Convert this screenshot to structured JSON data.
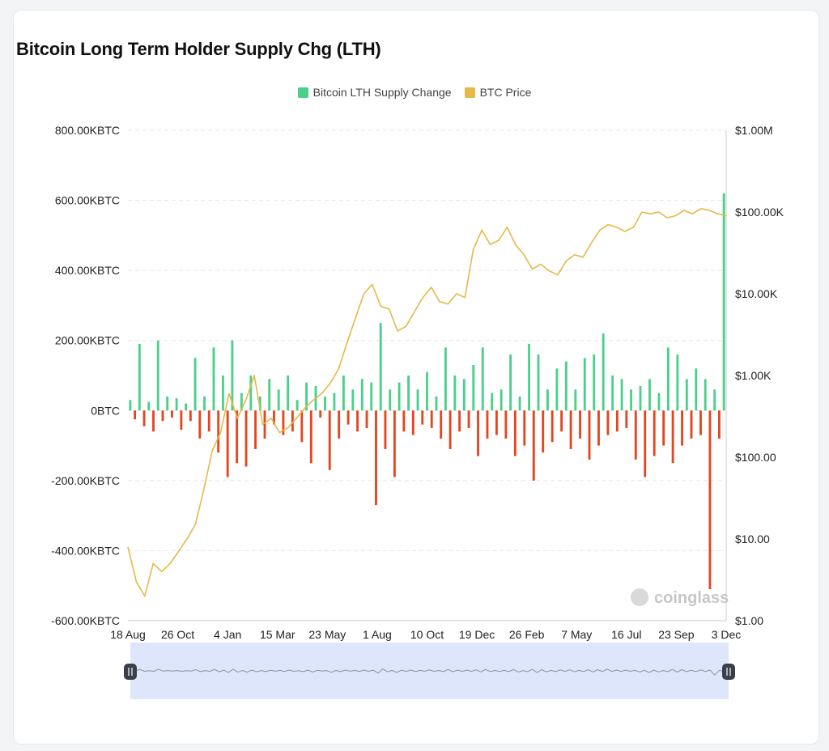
{
  "title": "Bitcoin Long Term Holder Supply Chg (LTH)",
  "watermark": "coinglass",
  "colors": {
    "positive": "#4bd08b",
    "negative": "#e4461f",
    "price": "#e6b84a",
    "grid": "#e6e6e6",
    "navigator_fill": "#dde6fb",
    "navigator_handle": "#3b3f4a"
  },
  "chart_data": {
    "type": "bar",
    "title": "Bitcoin Long Term Holder Supply Chg (LTH)",
    "legend": [
      {
        "name": "Bitcoin LTH Supply Change",
        "color": "#4bd08b"
      },
      {
        "name": "BTC Price",
        "color": "#e6b84a"
      }
    ],
    "legend_position": "top-center",
    "grid": true,
    "x_tick_labels": [
      "18 Aug",
      "26 Oct",
      "4 Jan",
      "15 Mar",
      "23 May",
      "1 Aug",
      "10 Oct",
      "19 Dec",
      "26 Feb",
      "7 May",
      "16 Jul",
      "23 Sep",
      "3 Dec"
    ],
    "y_left": {
      "unit": "KBTC",
      "ylim": [
        -600,
        800
      ],
      "tick_labels": [
        "800.00KBTC",
        "600.00KBTC",
        "400.00KBTC",
        "200.00KBTC",
        "0BTC",
        "-200.00KBTC",
        "-400.00KBTC",
        "-600.00KBTC"
      ]
    },
    "y_right": {
      "scale": "log",
      "ylim": [
        1,
        1000000
      ],
      "tick_labels": [
        "$1.00M",
        "$100.00K",
        "$10.00K",
        "$1.00K",
        "$100.00",
        "$10.00",
        "$1.00"
      ]
    },
    "series": [
      {
        "name": "Bitcoin LTH Supply Change",
        "type": "bar",
        "axis": "left",
        "values": [
          30,
          -25,
          190,
          -45,
          25,
          -60,
          200,
          -30,
          40,
          -20,
          35,
          -55,
          20,
          -30,
          150,
          -80,
          40,
          -60,
          180,
          -120,
          100,
          -190,
          200,
          -150,
          50,
          -160,
          100,
          -110,
          40,
          -80,
          90,
          -40,
          60,
          -70,
          100,
          -60,
          30,
          -90,
          80,
          -150,
          70,
          -20,
          40,
          -170,
          50,
          -80,
          100,
          -40,
          60,
          -60,
          90,
          -50,
          80,
          -270,
          250,
          -110,
          60,
          -190,
          80,
          -60,
          100,
          -70,
          60,
          -40,
          110,
          -50,
          40,
          -80,
          180,
          -110,
          100,
          -60,
          90,
          -50,
          130,
          -130,
          180,
          -80,
          50,
          -70,
          60,
          -80,
          160,
          -130,
          40,
          -100,
          190,
          -200,
          160,
          -120,
          60,
          -90,
          120,
          -60,
          140,
          -110,
          60,
          -80,
          150,
          -140,
          160,
          -100,
          220,
          -70,
          100,
          -60,
          90,
          -50,
          60,
          -140,
          70,
          -190,
          90,
          -130,
          50,
          -100,
          180,
          -150,
          160,
          -100,
          90,
          -80,
          120,
          -70,
          90,
          -510,
          60,
          -80,
          620
        ]
      },
      {
        "name": "BTC Price",
        "type": "line",
        "axis": "right",
        "values": [
          8,
          3,
          2,
          5,
          4,
          5,
          7,
          10,
          15,
          40,
          120,
          200,
          600,
          300,
          500,
          1000,
          250,
          300,
          200,
          230,
          300,
          400,
          500,
          600,
          800,
          1200,
          2500,
          5000,
          10000,
          13000,
          7000,
          6500,
          3500,
          4000,
          6000,
          9000,
          12000,
          8000,
          7500,
          10000,
          9000,
          35000,
          60000,
          40000,
          45000,
          65000,
          40000,
          30000,
          20000,
          23000,
          19000,
          17000,
          25000,
          30000,
          28000,
          42000,
          60000,
          70000,
          65000,
          58000,
          65000,
          100000,
          95000,
          100000,
          85000,
          90000,
          105000,
          95000,
          110000,
          105000,
          95000,
          90000
        ]
      }
    ]
  }
}
